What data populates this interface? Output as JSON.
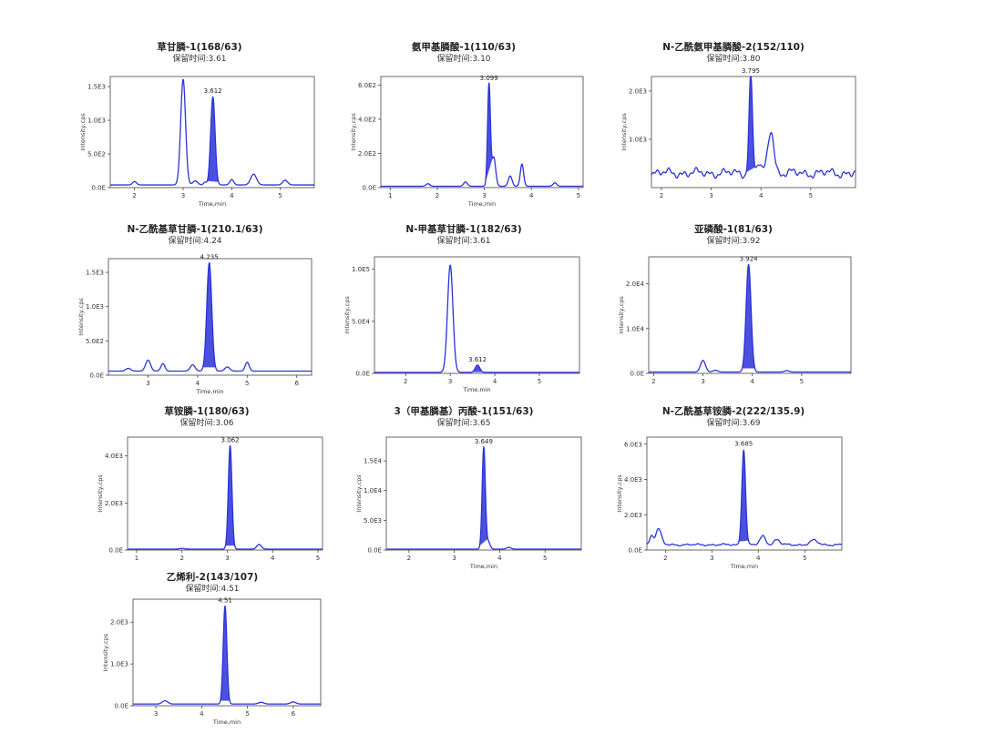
{
  "colors": {
    "trace": "#2b33d8",
    "fill": "#2b33d8",
    "frame": "#444444"
  },
  "chart_data": [
    {
      "type": "line",
      "title": "草甘膦-1(168/63)",
      "subtitle": "保留时间:3.61",
      "xlabel": "Time,min",
      "ylabel": "Intensity,cps",
      "xlim": [
        1.5,
        5.7
      ],
      "xticks": [
        2,
        3,
        4,
        5
      ],
      "ylim": [
        0,
        1650
      ],
      "yticks": [
        0,
        500,
        1000,
        1500
      ],
      "ytick_labels": [
        "0.0E",
        "5.0E2",
        "1.0E3",
        "1.5E3"
      ],
      "baseline": 40,
      "peaks": [
        {
          "x": 3.0,
          "h": 1570,
          "w": 0.05
        },
        {
          "x": 3.612,
          "h": 1310,
          "w": 0.045,
          "label": "3.612",
          "filled": true
        },
        {
          "x": 3.25,
          "h": 60,
          "w": 0.05
        },
        {
          "x": 4.45,
          "h": 160,
          "w": 0.06
        },
        {
          "x": 4.0,
          "h": 80,
          "w": 0.04
        },
        {
          "x": 5.1,
          "h": 70,
          "w": 0.05
        },
        {
          "x": 2.0,
          "h": 50,
          "w": 0.04
        },
        {
          "x": 3.45,
          "h": 40,
          "w": 0.03
        }
      ]
    },
    {
      "type": "line",
      "title": "氨甲基膦酸-1(110/63)",
      "subtitle": "保留时间:3.10",
      "xlabel": "Time,min",
      "ylabel": "Intensity,cps",
      "xlim": [
        0.8,
        5.1
      ],
      "xticks": [
        1,
        2,
        3,
        4,
        5
      ],
      "ylim": [
        0,
        650
      ],
      "yticks": [
        0,
        200,
        400,
        600
      ],
      "ytick_labels": [
        "0.0E",
        "2.0E2",
        "4.0E2",
        "6.0E2"
      ],
      "baseline": 8,
      "peaks": [
        {
          "x": 3.099,
          "h": 600,
          "w": 0.03,
          "label": "3.099",
          "filled": true
        },
        {
          "x": 3.2,
          "h": 170,
          "w": 0.04
        },
        {
          "x": 3.8,
          "h": 130,
          "w": 0.035
        },
        {
          "x": 3.55,
          "h": 60,
          "w": 0.04
        },
        {
          "x": 2.6,
          "h": 25,
          "w": 0.04
        },
        {
          "x": 4.5,
          "h": 20,
          "w": 0.04
        },
        {
          "x": 1.8,
          "h": 15,
          "w": 0.04
        }
      ]
    },
    {
      "type": "line",
      "title": "N-乙酰氨甲基膦酸-2(152/110)",
      "subtitle": "保留时间:3.80",
      "xlabel": "",
      "ylabel": "Intensity,cps",
      "xlim": [
        1.8,
        5.9
      ],
      "xticks": [
        2,
        3,
        4,
        5
      ],
      "ylim": [
        0,
        2300
      ],
      "yticks": [
        1000,
        2000
      ],
      "ytick_labels": [
        "1.0E3",
        "2.0E3"
      ],
      "baseline": 300,
      "noise": 100,
      "peaks": [
        {
          "x": 3.795,
          "h": 2000,
          "w": 0.035,
          "label": "3.795",
          "filled": true
        },
        {
          "x": 4.2,
          "h": 900,
          "w": 0.06
        },
        {
          "x": 3.95,
          "h": 200,
          "w": 0.04
        }
      ]
    },
    {
      "type": "line",
      "title": "N-乙酰基草甘膦-1(210.1/63)",
      "subtitle": "保留时间:4.24",
      "xlabel": "Time,min",
      "ylabel": "Intensity,cps",
      "xlim": [
        2.2,
        6.3
      ],
      "xticks": [
        3,
        4,
        5,
        6
      ],
      "ylim": [
        0,
        1700
      ],
      "yticks": [
        0,
        500,
        1000,
        1500
      ],
      "ytick_labels": [
        "0.0E",
        "5.0E2",
        "1.0E3",
        "1.5E3"
      ],
      "baseline": 60,
      "peaks": [
        {
          "x": 4.235,
          "h": 1580,
          "w": 0.05,
          "label": "4.235",
          "filled": true
        },
        {
          "x": 3.0,
          "h": 160,
          "w": 0.05
        },
        {
          "x": 3.3,
          "h": 110,
          "w": 0.04
        },
        {
          "x": 3.9,
          "h": 90,
          "w": 0.05
        },
        {
          "x": 5.0,
          "h": 130,
          "w": 0.04
        },
        {
          "x": 4.6,
          "h": 60,
          "w": 0.05
        },
        {
          "x": 2.6,
          "h": 40,
          "w": 0.05
        }
      ]
    },
    {
      "type": "line",
      "title": "N-甲基草甘膦-1(182/63)",
      "subtitle": "保留时间:3.61",
      "xlabel": "Time,min",
      "ylabel": "Intensity,cps",
      "xlim": [
        1.3,
        5.9
      ],
      "xticks": [
        2,
        3,
        4,
        5
      ],
      "ylim": [
        0,
        112000
      ],
      "yticks": [
        0,
        50000,
        100000
      ],
      "ytick_labels": [
        "0.0E",
        "5.0E4",
        "1.0E5"
      ],
      "baseline": 1000,
      "peaks": [
        {
          "x": 3.0,
          "h": 103000,
          "w": 0.06
        },
        {
          "x": 3.612,
          "h": 7000,
          "w": 0.05,
          "label": "3.612",
          "filled": true
        }
      ]
    },
    {
      "type": "line",
      "title": "亚磷酸-1(81/63)",
      "subtitle": "保留时间:3.92",
      "xlabel": "",
      "ylabel": "Intensity,cps",
      "xlim": [
        1.9,
        6.0
      ],
      "xticks": [
        2,
        3,
        4,
        5
      ],
      "ylim": [
        0,
        26000
      ],
      "yticks": [
        0,
        10000,
        20000
      ],
      "ytick_labels": [
        "0.0E",
        "1.0E4",
        "2.0E4"
      ],
      "baseline": 300,
      "peaks": [
        {
          "x": 3.924,
          "h": 24000,
          "w": 0.05,
          "label": "3.924",
          "filled": true
        },
        {
          "x": 3.0,
          "h": 2600,
          "w": 0.05
        },
        {
          "x": 3.25,
          "h": 400,
          "w": 0.05
        },
        {
          "x": 4.7,
          "h": 300,
          "w": 0.05
        }
      ]
    },
    {
      "type": "line",
      "title": "草铵膦-1(180/63)",
      "subtitle": "保留时间:3.06",
      "xlabel": "",
      "ylabel": "Intensity,cps",
      "xlim": [
        0.8,
        5.1
      ],
      "xticks": [
        1,
        2,
        3,
        4,
        5
      ],
      "ylim": [
        0,
        4800
      ],
      "yticks": [
        0,
        2000,
        4000
      ],
      "ytick_labels": [
        "0.0E",
        "2.0E3",
        "4.0E3"
      ],
      "baseline": 40,
      "peaks": [
        {
          "x": 3.062,
          "h": 4400,
          "w": 0.04,
          "label": "3.062",
          "filled": true
        },
        {
          "x": 3.7,
          "h": 200,
          "w": 0.05
        },
        {
          "x": 2.0,
          "h": 30,
          "w": 0.05
        }
      ]
    },
    {
      "type": "line",
      "title": "3（甲基膦基）丙酸-1(151/63)",
      "subtitle": "保留时间:3.65",
      "xlabel": "Time,min",
      "ylabel": "Intensity,cps",
      "xlim": [
        1.5,
        5.8
      ],
      "xticks": [
        2,
        3,
        4,
        5
      ],
      "ylim": [
        0,
        19000
      ],
      "yticks": [
        0,
        5000,
        10000,
        15000
      ],
      "ytick_labels": [
        "0.0E",
        "5.0E3",
        "1.0E4",
        "1.5E4"
      ],
      "baseline": 150,
      "peaks": [
        {
          "x": 3.649,
          "h": 17200,
          "w": 0.035,
          "label": "3.649",
          "filled": true
        },
        {
          "x": 3.75,
          "h": 1200,
          "w": 0.04
        },
        {
          "x": 4.2,
          "h": 300,
          "w": 0.05
        }
      ]
    },
    {
      "type": "line",
      "title": "N-乙酰基草铵膦-2(222/135.9)",
      "subtitle": "保留时间:3.69",
      "xlabel": "Time,min",
      "ylabel": "Intensity,cps",
      "xlim": [
        1.6,
        5.8
      ],
      "xticks": [
        2,
        3,
        4,
        5
      ],
      "ylim": [
        0,
        6400
      ],
      "yticks": [
        0,
        2000,
        4000,
        6000
      ],
      "ytick_labels": [
        "0.0E",
        "2.0E3",
        "4.0E3",
        "6.0E3"
      ],
      "baseline": 300,
      "noise": 60,
      "peaks": [
        {
          "x": 3.685,
          "h": 5400,
          "w": 0.04,
          "label": "3.685",
          "filled": true
        },
        {
          "x": 1.85,
          "h": 900,
          "w": 0.06
        },
        {
          "x": 1.7,
          "h": 500,
          "w": 0.04
        },
        {
          "x": 4.1,
          "h": 500,
          "w": 0.06
        },
        {
          "x": 4.4,
          "h": 300,
          "w": 0.06
        },
        {
          "x": 5.2,
          "h": 250,
          "w": 0.08
        }
      ]
    },
    {
      "type": "line",
      "title": "乙烯利-2(143/107)",
      "subtitle": "保留时间:4.51",
      "xlabel": "Time,min",
      "ylabel": "Intensity,cps",
      "xlim": [
        2.5,
        6.6
      ],
      "xticks": [
        3,
        4,
        5,
        6
      ],
      "ylim": [
        0,
        2550
      ],
      "yticks": [
        0,
        1000,
        2000
      ],
      "ytick_labels": [
        "0.0E",
        "1.0E3",
        "2.0E3"
      ],
      "baseline": 40,
      "peaks": [
        {
          "x": 4.51,
          "h": 2350,
          "w": 0.04,
          "label": "4.51",
          "filled": true
        },
        {
          "x": 3.2,
          "h": 80,
          "w": 0.06
        },
        {
          "x": 5.3,
          "h": 40,
          "w": 0.06
        },
        {
          "x": 6.0,
          "h": 50,
          "w": 0.06
        }
      ]
    }
  ]
}
